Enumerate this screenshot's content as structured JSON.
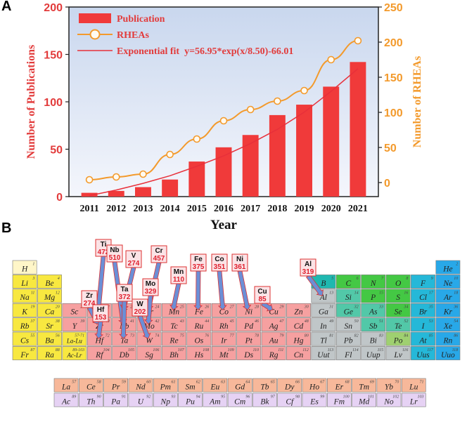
{
  "panels": {
    "a": "A",
    "b": "B"
  },
  "chart_data": {
    "type": "bar",
    "categories": [
      "2011",
      "2012",
      "2013",
      "2014",
      "2015",
      "2016",
      "2017",
      "2018",
      "2019",
      "2020",
      "2021"
    ],
    "series": [
      {
        "name": "Publication",
        "type": "bar",
        "axis": "left",
        "values": [
          4,
          6,
          10,
          18,
          37,
          52,
          65,
          86,
          97,
          116,
          142
        ]
      },
      {
        "name": "RHEAs",
        "type": "line",
        "axis": "right",
        "values": [
          4,
          8,
          12,
          40,
          62,
          88,
          104,
          116,
          131,
          175,
          202
        ]
      },
      {
        "name": "Exponential fit  y=56.95*exp(x/8.50)-66.01",
        "type": "fit",
        "axis": "left",
        "values": [
          1,
          7,
          14,
          22,
          32,
          43,
          56,
          71,
          89,
          111,
          135
        ]
      }
    ],
    "xlabel": "Year",
    "ylabel": "Number of Publications",
    "y2label": "Number of RHEAs",
    "ylim": [
      0,
      200
    ],
    "y2lim": [
      -20,
      250
    ],
    "yticks": [
      0,
      50,
      100,
      150,
      200
    ],
    "y2ticks": [
      0,
      50,
      100,
      150,
      200,
      250
    ],
    "legend_position": "top-left",
    "colors": {
      "bar": "#f03a3a",
      "line": "#f39a2c",
      "fit": "#e8303a",
      "left_axis": "#e23b3b",
      "right_axis": "#f39a2c"
    }
  },
  "periodic_table": {
    "main": [
      {
        "s": "H",
        "n": "1",
        "r": 1,
        "c": 1,
        "g": "h"
      },
      {
        "s": "He",
        "n": "2",
        "r": 1,
        "c": 18,
        "g": "ng"
      },
      {
        "s": "Li",
        "n": "3",
        "r": 2,
        "c": 1,
        "g": "am"
      },
      {
        "s": "Be",
        "n": "4",
        "r": 2,
        "c": 2,
        "g": "am"
      },
      {
        "s": "B",
        "n": "5",
        "r": 2,
        "c": 13,
        "g": "nm"
      },
      {
        "s": "C",
        "n": "6",
        "r": 2,
        "c": 14,
        "g": "nm2"
      },
      {
        "s": "N",
        "n": "7",
        "r": 2,
        "c": 15,
        "g": "nm2"
      },
      {
        "s": "O",
        "n": "8",
        "r": 2,
        "c": 16,
        "g": "nm2"
      },
      {
        "s": "F",
        "n": "9",
        "r": 2,
        "c": 17,
        "g": "hal"
      },
      {
        "s": "Ne",
        "n": "10",
        "r": 2,
        "c": 18,
        "g": "ng"
      },
      {
        "s": "Na",
        "n": "11",
        "r": 3,
        "c": 1,
        "g": "am"
      },
      {
        "s": "Mg",
        "n": "12",
        "r": 3,
        "c": 2,
        "g": "am"
      },
      {
        "s": "Al",
        "n": "13",
        "r": 3,
        "c": 13,
        "g": "pm"
      },
      {
        "s": "Si",
        "n": "14",
        "r": 3,
        "c": 14,
        "g": "ml"
      },
      {
        "s": "P",
        "n": "15",
        "r": 3,
        "c": 15,
        "g": "nm2"
      },
      {
        "s": "S",
        "n": "16",
        "r": 3,
        "c": 16,
        "g": "nm2"
      },
      {
        "s": "Cl",
        "n": "17",
        "r": 3,
        "c": 17,
        "g": "hal"
      },
      {
        "s": "Ar",
        "n": "18",
        "r": 3,
        "c": 18,
        "g": "ng"
      },
      {
        "s": "K",
        "n": "19",
        "r": 4,
        "c": 1,
        "g": "am"
      },
      {
        "s": "Ca",
        "n": "20",
        "r": 4,
        "c": 2,
        "g": "am"
      },
      {
        "s": "Sc",
        "n": "21",
        "r": 4,
        "c": 3,
        "g": "tm"
      },
      {
        "s": "Ti",
        "n": "22",
        "r": 4,
        "c": 4,
        "g": "tm"
      },
      {
        "s": "V",
        "n": "23",
        "r": 4,
        "c": 5,
        "g": "tm"
      },
      {
        "s": "Cr",
        "n": "24",
        "r": 4,
        "c": 6,
        "g": "tm"
      },
      {
        "s": "Mn",
        "n": "25",
        "r": 4,
        "c": 7,
        "g": "tm"
      },
      {
        "s": "Fe",
        "n": "26",
        "r": 4,
        "c": 8,
        "g": "tm"
      },
      {
        "s": "Co",
        "n": "27",
        "r": 4,
        "c": 9,
        "g": "tm"
      },
      {
        "s": "Ni",
        "n": "28",
        "r": 4,
        "c": 10,
        "g": "tm"
      },
      {
        "s": "Cu",
        "n": "29",
        "r": 4,
        "c": 11,
        "g": "tm"
      },
      {
        "s": "Zn",
        "n": "30",
        "r": 4,
        "c": 12,
        "g": "tm"
      },
      {
        "s": "Ga",
        "n": "31",
        "r": 4,
        "c": 13,
        "g": "pm"
      },
      {
        "s": "Ge",
        "n": "32",
        "r": 4,
        "c": 14,
        "g": "ml"
      },
      {
        "s": "As",
        "n": "33",
        "r": 4,
        "c": 15,
        "g": "ml"
      },
      {
        "s": "Se",
        "n": "34",
        "r": 4,
        "c": 16,
        "g": "nm2"
      },
      {
        "s": "Br",
        "n": "35",
        "r": 4,
        "c": 17,
        "g": "hal"
      },
      {
        "s": "Kr",
        "n": "36",
        "r": 4,
        "c": 18,
        "g": "ng"
      },
      {
        "s": "Rb",
        "n": "37",
        "r": 5,
        "c": 1,
        "g": "am"
      },
      {
        "s": "Sr",
        "n": "38",
        "r": 5,
        "c": 2,
        "g": "am"
      },
      {
        "s": "Y",
        "n": "39",
        "r": 5,
        "c": 3,
        "g": "tm"
      },
      {
        "s": "Zr",
        "n": "40",
        "r": 5,
        "c": 4,
        "g": "tm"
      },
      {
        "s": "Nb",
        "n": "41",
        "r": 5,
        "c": 5,
        "g": "tm"
      },
      {
        "s": "Mo",
        "n": "42",
        "r": 5,
        "c": 6,
        "g": "tm"
      },
      {
        "s": "Tc",
        "n": "43",
        "r": 5,
        "c": 7,
        "g": "tm"
      },
      {
        "s": "Ru",
        "n": "44",
        "r": 5,
        "c": 8,
        "g": "tm"
      },
      {
        "s": "Rh",
        "n": "45",
        "r": 5,
        "c": 9,
        "g": "tm"
      },
      {
        "s": "Pd",
        "n": "46",
        "r": 5,
        "c": 10,
        "g": "tm"
      },
      {
        "s": "Ag",
        "n": "47",
        "r": 5,
        "c": 11,
        "g": "tm"
      },
      {
        "s": "Cd",
        "n": "48",
        "r": 5,
        "c": 12,
        "g": "tm"
      },
      {
        "s": "In",
        "n": "49",
        "r": 5,
        "c": 13,
        "g": "pm"
      },
      {
        "s": "Sn",
        "n": "50",
        "r": 5,
        "c": 14,
        "g": "pm"
      },
      {
        "s": "Sb",
        "n": "51",
        "r": 5,
        "c": 15,
        "g": "ml"
      },
      {
        "s": "Te",
        "n": "52",
        "r": 5,
        "c": 16,
        "g": "ml"
      },
      {
        "s": "I",
        "n": "53",
        "r": 5,
        "c": 17,
        "g": "hal"
      },
      {
        "s": "Xe",
        "n": "54",
        "r": 5,
        "c": 18,
        "g": "ng"
      },
      {
        "s": "Cs",
        "n": "55",
        "r": 6,
        "c": 1,
        "g": "am"
      },
      {
        "s": "Ba",
        "n": "56",
        "r": 6,
        "c": 2,
        "g": "am"
      },
      {
        "s": "La-Lu",
        "n": "57-71",
        "r": 6,
        "c": 3,
        "g": "lan"
      },
      {
        "s": "Hf",
        "n": "72",
        "r": 6,
        "c": 4,
        "g": "tm"
      },
      {
        "s": "Ta",
        "n": "73",
        "r": 6,
        "c": 5,
        "g": "tm"
      },
      {
        "s": "W",
        "n": "74",
        "r": 6,
        "c": 6,
        "g": "tm"
      },
      {
        "s": "Re",
        "n": "75",
        "r": 6,
        "c": 7,
        "g": "tm"
      },
      {
        "s": "Os",
        "n": "76",
        "r": 6,
        "c": 8,
        "g": "tm"
      },
      {
        "s": "Ir",
        "n": "77",
        "r": 6,
        "c": 9,
        "g": "tm"
      },
      {
        "s": "Pt",
        "n": "78",
        "r": 6,
        "c": 10,
        "g": "tm"
      },
      {
        "s": "Au",
        "n": "79",
        "r": 6,
        "c": 11,
        "g": "tm"
      },
      {
        "s": "Hg",
        "n": "80",
        "r": 6,
        "c": 12,
        "g": "tm"
      },
      {
        "s": "Tl",
        "n": "81",
        "r": 6,
        "c": 13,
        "g": "pm"
      },
      {
        "s": "Pb",
        "n": "82",
        "r": 6,
        "c": 14,
        "g": "pm"
      },
      {
        "s": "Bi",
        "n": "83",
        "r": 6,
        "c": 15,
        "g": "pm"
      },
      {
        "s": "Po",
        "n": "84",
        "r": 6,
        "c": 16,
        "g": "pm2"
      },
      {
        "s": "At",
        "n": "85",
        "r": 6,
        "c": 17,
        "g": "hal"
      },
      {
        "s": "Rn",
        "n": "86",
        "r": 6,
        "c": 18,
        "g": "ng"
      },
      {
        "s": "Fr",
        "n": "87",
        "r": 7,
        "c": 1,
        "g": "am"
      },
      {
        "s": "Ra",
        "n": "88",
        "r": 7,
        "c": 2,
        "g": "am"
      },
      {
        "s": "Ac-Lr",
        "n": "89-103",
        "r": 7,
        "c": 3,
        "g": "act"
      },
      {
        "s": "Rf",
        "n": "104",
        "r": 7,
        "c": 4,
        "g": "tm"
      },
      {
        "s": "Db",
        "n": "105",
        "r": 7,
        "c": 5,
        "g": "tm"
      },
      {
        "s": "Sg",
        "n": "106",
        "r": 7,
        "c": 6,
        "g": "tm"
      },
      {
        "s": "Bh",
        "n": "107",
        "r": 7,
        "c": 7,
        "g": "tm"
      },
      {
        "s": "Hs",
        "n": "108",
        "r": 7,
        "c": 8,
        "g": "tm"
      },
      {
        "s": "Mt",
        "n": "109",
        "r": 7,
        "c": 9,
        "g": "tm"
      },
      {
        "s": "Ds",
        "n": "110",
        "r": 7,
        "c": 10,
        "g": "tm"
      },
      {
        "s": "Rg",
        "n": "111",
        "r": 7,
        "c": 11,
        "g": "tm"
      },
      {
        "s": "Cn",
        "n": "112",
        "r": 7,
        "c": 12,
        "g": "tm"
      },
      {
        "s": "Uut",
        "n": "113",
        "r": 7,
        "c": 13,
        "g": "pm"
      },
      {
        "s": "Fl",
        "n": "114",
        "r": 7,
        "c": 14,
        "g": "pm"
      },
      {
        "s": "Uup",
        "n": "115",
        "r": 7,
        "c": 15,
        "g": "pm"
      },
      {
        "s": "Lv",
        "n": "116",
        "r": 7,
        "c": 16,
        "g": "pm"
      },
      {
        "s": "Uus",
        "n": "117",
        "r": 7,
        "c": 17,
        "g": "hal"
      },
      {
        "s": "Uuo",
        "n": "118",
        "r": 7,
        "c": 18,
        "g": "ng"
      }
    ],
    "lanthanides": [
      {
        "s": "La",
        "n": "57"
      },
      {
        "s": "Ce",
        "n": "58"
      },
      {
        "s": "Pr",
        "n": "59"
      },
      {
        "s": "Nd",
        "n": "60"
      },
      {
        "s": "Pm",
        "n": "61"
      },
      {
        "s": "Sm",
        "n": "62"
      },
      {
        "s": "Eu",
        "n": "63"
      },
      {
        "s": "Gd",
        "n": "64"
      },
      {
        "s": "Tb",
        "n": "65"
      },
      {
        "s": "Dy",
        "n": "66"
      },
      {
        "s": "Ho",
        "n": "67"
      },
      {
        "s": "Er",
        "n": "68"
      },
      {
        "s": "Tm",
        "n": "69"
      },
      {
        "s": "Yb",
        "n": "70"
      },
      {
        "s": "Lu",
        "n": "71"
      }
    ],
    "actinides": [
      {
        "s": "Ac",
        "n": "89"
      },
      {
        "s": "Th",
        "n": "90"
      },
      {
        "s": "Pa",
        "n": "91"
      },
      {
        "s": "U",
        "n": "92"
      },
      {
        "s": "Np",
        "n": "93"
      },
      {
        "s": "Pu",
        "n": "94"
      },
      {
        "s": "Am",
        "n": "95"
      },
      {
        "s": "Cm",
        "n": "96"
      },
      {
        "s": "Bk",
        "n": "97"
      },
      {
        "s": "Cf",
        "n": "98"
      },
      {
        "s": "Es",
        "n": "99"
      },
      {
        "s": "Fm",
        "n": "100"
      },
      {
        "s": "Md",
        "n": "101"
      },
      {
        "s": "No",
        "n": "102"
      },
      {
        "s": "Lr",
        "n": "103"
      }
    ],
    "callouts": [
      {
        "el": "Ti",
        "count": "472"
      },
      {
        "el": "Nb",
        "count": "510"
      },
      {
        "el": "V",
        "count": "274"
      },
      {
        "el": "Cr",
        "count": "457"
      },
      {
        "el": "Zr",
        "count": "274"
      },
      {
        "el": "Ta",
        "count": "372"
      },
      {
        "el": "Mo",
        "count": "329"
      },
      {
        "el": "Hf",
        "count": "153"
      },
      {
        "el": "W",
        "count": "202"
      },
      {
        "el": "Mn",
        "count": "110"
      },
      {
        "el": "Fe",
        "count": "375"
      },
      {
        "el": "Co",
        "count": "351"
      },
      {
        "el": "Ni",
        "count": "361"
      },
      {
        "el": "Cu",
        "count": "85"
      },
      {
        "el": "Al",
        "count": "319"
      }
    ],
    "group_colors": {
      "h": "#fff6c8",
      "am": "#f8e840",
      "tm": "#f6a0a0",
      "pm": "#c0c6c8",
      "pm2": "#9fd070",
      "ml": "#52c8a8",
      "nm": "#1fb8b0",
      "nm2": "#44c844",
      "hal": "#25b8d8",
      "ng": "#28a8e8",
      "lan": "#f8e840",
      "act": "#f8e840",
      "lanrow": "#f7b89a",
      "actrow": "#e6d2f4"
    }
  }
}
